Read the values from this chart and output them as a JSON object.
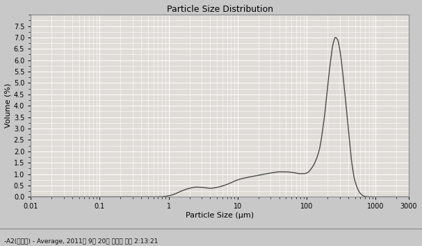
{
  "title": "Particle Size Distribution",
  "xlabel": "Particle Size (μm)",
  "ylabel": "Volume (%)",
  "xmin": 0.01,
  "xmax": 3000,
  "ymin": 0,
  "ymax": 8.0,
  "yticks": [
    0,
    0.5,
    1,
    1.5,
    2,
    2.5,
    3,
    3.5,
    4,
    4.5,
    5,
    5.5,
    6,
    6.5,
    7,
    7.5
  ],
  "xtick_positions": [
    0.01,
    0.1,
    1,
    10,
    100,
    1000,
    3000
  ],
  "xticklabels": [
    "0.01",
    "0.1",
    "1",
    "10",
    "100",
    "1000",
    "3000"
  ],
  "line_color": "#4a4a4a",
  "plot_bg_color": "#e0ddd8",
  "fig_bg_color": "#c8c8c8",
  "grid_major_color": "#ffffff",
  "grid_minor_color": "#ffffff",
  "footer_text": "-A2(김동진) - Average, 2011년 9월 20일 화요일 오후 2:13:21",
  "curve_points_x": [
    0.01,
    0.05,
    0.1,
    0.3,
    0.5,
    0.8,
    1.0,
    1.2,
    1.5,
    2.0,
    2.5,
    3.0,
    4.0,
    5.0,
    7.0,
    10.0,
    15.0,
    20.0,
    30.0,
    40.0,
    50.0,
    60.0,
    70.0,
    80.0,
    90.0,
    100.0,
    120.0,
    150.0,
    180.0,
    200.0,
    220.0,
    240.0,
    260.0,
    280.0,
    300.0,
    350.0,
    400.0,
    450.0,
    500.0,
    600.0,
    700.0,
    800.0,
    1000.0,
    2000.0,
    3000.0
  ],
  "curve_points_y": [
    0.0,
    0.0,
    0.0,
    0.0,
    0.0,
    0.01,
    0.05,
    0.12,
    0.25,
    0.38,
    0.43,
    0.42,
    0.38,
    0.42,
    0.55,
    0.75,
    0.88,
    0.95,
    1.05,
    1.1,
    1.1,
    1.08,
    1.05,
    1.02,
    1.02,
    1.05,
    1.3,
    2.0,
    3.5,
    4.8,
    5.9,
    6.7,
    7.0,
    6.9,
    6.5,
    4.8,
    3.0,
    1.5,
    0.7,
    0.15,
    0.02,
    0.005,
    0.0,
    0.0,
    0.0
  ]
}
